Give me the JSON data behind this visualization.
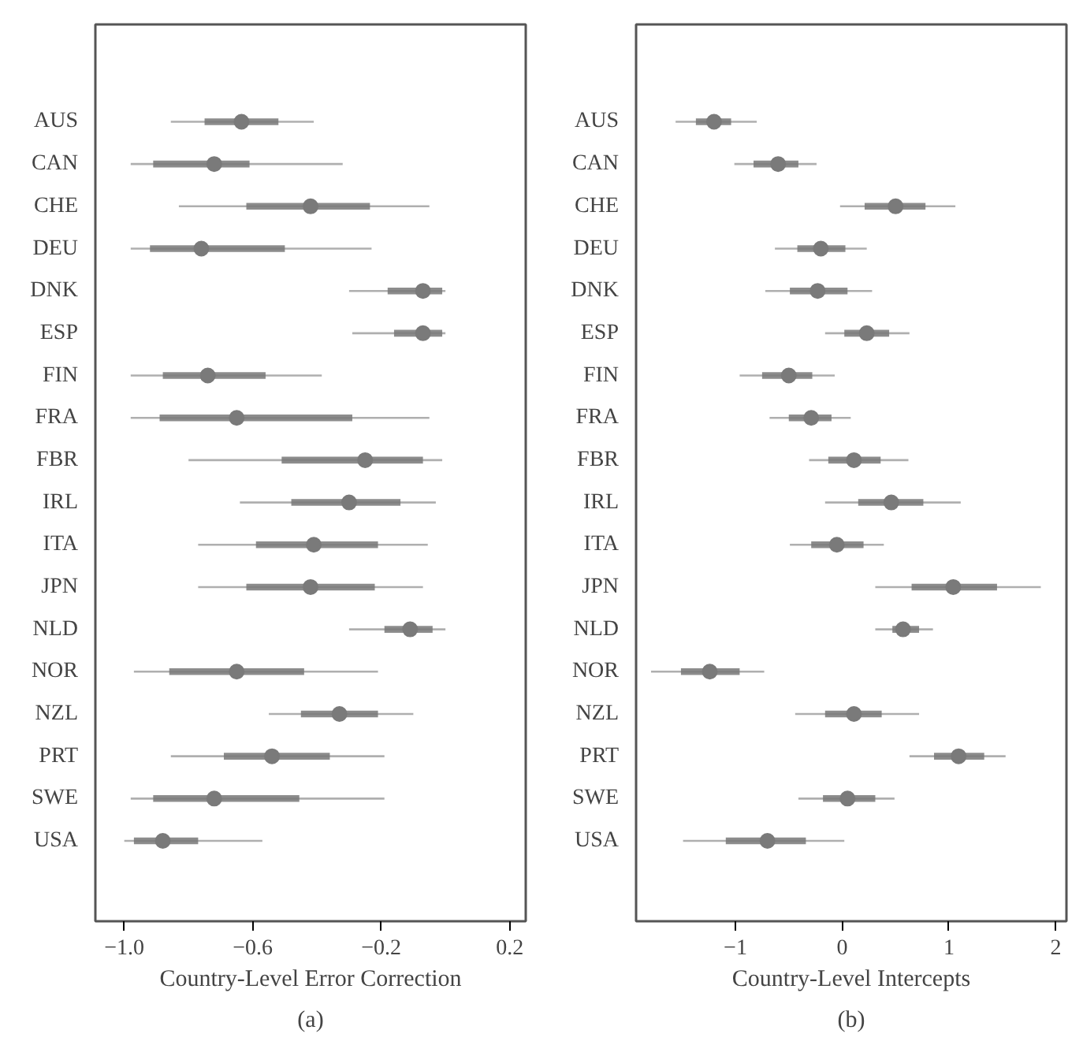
{
  "chart_data": [
    {
      "type": "scatter",
      "orientation": "horizontal",
      "xlabel": "Country-Level Error Correction",
      "annotations": [
        "(a)"
      ],
      "grid": false,
      "marker": "circle",
      "categories": [
        "AUS",
        "CAN",
        "CHE",
        "DEU",
        "DNK",
        "ESP",
        "FIN",
        "FRA",
        "FBR",
        "IRL",
        "ITA",
        "JPN",
        "NLD",
        "NOR",
        "NZL",
        "PRT",
        "SWE",
        "USA"
      ],
      "xlim": [
        -1.09,
        0.25
      ],
      "xticks": [
        {
          "value": -1.0,
          "label": "−1.0"
        },
        {
          "value": -0.6,
          "label": "−0.6"
        },
        {
          "value": -0.2,
          "label": "−0.2"
        },
        {
          "value": 0.2,
          "label": "0.2"
        }
      ],
      "series": [
        {
          "type": "bar",
          "color": "#8c8c8c",
          "base": [
            -0.75,
            -0.91,
            -0.62,
            -0.92,
            -0.18,
            -0.16,
            -0.88,
            -0.89,
            -0.51,
            -0.48,
            -0.59,
            -0.62,
            -0.19,
            -0.86,
            -0.45,
            -0.69,
            -0.91,
            -0.97
          ],
          "values": [
            0.23,
            0.3,
            0.385,
            0.42,
            0.17,
            0.15,
            0.32,
            0.6,
            0.44,
            0.34,
            0.38,
            0.4,
            0.15,
            0.42,
            0.24,
            0.33,
            0.455,
            0.2
          ]
        },
        {
          "color": "#7a7a7a",
          "values": [
            -0.635,
            -0.72,
            -0.42,
            -0.76,
            -0.07,
            -0.07,
            -0.74,
            -0.65,
            -0.25,
            -0.3,
            -0.41,
            -0.42,
            -0.11,
            -0.65,
            -0.33,
            -0.54,
            -0.72,
            -0.88
          ],
          "errors": [
            [
              -0.855,
              -0.41
            ],
            [
              -0.98,
              -0.32
            ],
            [
              -0.83,
              -0.05
            ],
            [
              -0.98,
              -0.23
            ],
            [
              -0.3,
              0.0
            ],
            [
              -0.29,
              0.0
            ],
            [
              -0.98,
              -0.385
            ],
            [
              -0.98,
              -0.05
            ],
            [
              -0.8,
              -0.01
            ],
            [
              -0.64,
              -0.03
            ],
            [
              -0.77,
              -0.055
            ],
            [
              -0.77,
              -0.07
            ],
            [
              -0.3,
              0.0
            ],
            [
              -0.97,
              -0.21
            ],
            [
              -0.55,
              -0.1
            ],
            [
              -0.855,
              -0.19
            ],
            [
              -0.98,
              -0.19
            ],
            [
              -1.0,
              -0.57
            ]
          ]
        }
      ]
    },
    {
      "type": "scatter",
      "orientation": "horizontal",
      "xlabel": "Country-Level Intercepts",
      "annotations": [
        "(b)"
      ],
      "grid": false,
      "marker": "circle",
      "categories": [
        "AUS",
        "CAN",
        "CHE",
        "DEU",
        "DNK",
        "ESP",
        "FIN",
        "FRA",
        "FBR",
        "IRL",
        "ITA",
        "JPN",
        "NLD",
        "NOR",
        "NZL",
        "PRT",
        "SWE",
        "USA"
      ],
      "xlim": [
        -1.93,
        2.1
      ],
      "xticks": [
        {
          "value": -1,
          "label": "−1"
        },
        0,
        1,
        2
      ],
      "series": [
        {
          "type": "bar",
          "color": "#8c8c8c",
          "base": [
            -1.37,
            -0.83,
            0.21,
            -0.42,
            -0.49,
            0.02,
            -0.75,
            -0.5,
            -0.13,
            0.15,
            -0.29,
            0.65,
            0.47,
            -1.51,
            -0.16,
            0.86,
            -0.18,
            -1.09
          ],
          "values": [
            0.33,
            0.42,
            0.57,
            0.45,
            0.54,
            0.42,
            0.47,
            0.4,
            0.49,
            0.61,
            0.49,
            0.8,
            0.25,
            0.55,
            0.53,
            0.47,
            0.49,
            0.75
          ]
        },
        {
          "color": "#7a7a7a",
          "values": [
            -1.2,
            -0.6,
            0.5,
            -0.2,
            -0.23,
            0.23,
            -0.5,
            -0.29,
            0.11,
            0.46,
            -0.05,
            1.04,
            0.57,
            -1.24,
            0.11,
            1.09,
            0.05,
            -0.7
          ],
          "errors": [
            [
              -1.56,
              -0.8
            ],
            [
              -1.01,
              -0.24
            ],
            [
              -0.02,
              1.06
            ],
            [
              -0.63,
              0.23
            ],
            [
              -0.72,
              0.28
            ],
            [
              -0.16,
              0.63
            ],
            [
              -0.96,
              -0.07
            ],
            [
              -0.68,
              0.08
            ],
            [
              -0.31,
              0.62
            ],
            [
              -0.16,
              1.11
            ],
            [
              -0.49,
              0.39
            ],
            [
              0.31,
              1.86
            ],
            [
              0.31,
              0.85
            ],
            [
              -1.79,
              -0.73
            ],
            [
              -0.44,
              0.72
            ],
            [
              0.63,
              1.53
            ],
            [
              -0.41,
              0.49
            ],
            [
              -1.49,
              0.02
            ]
          ]
        }
      ]
    }
  ]
}
